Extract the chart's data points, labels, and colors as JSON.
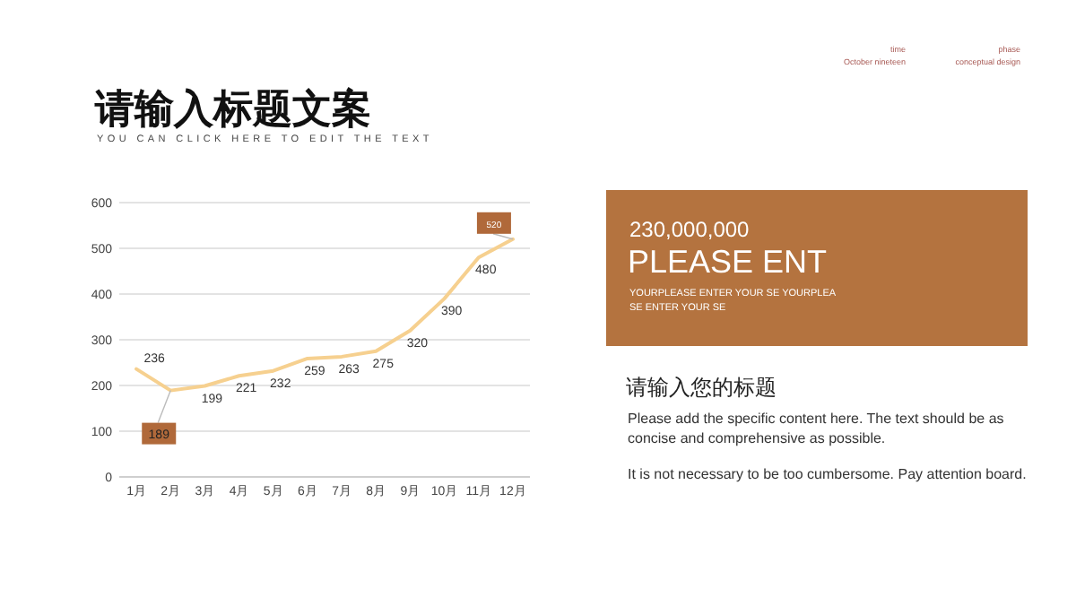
{
  "chart_data": [
    {
      "type": "line",
      "title": "请输入标题文案",
      "subtitle": "YOU CAN CLICK HERE TO EDIT THE TEXT",
      "categories": [
        "1月",
        "2月",
        "3月",
        "4月",
        "5月",
        "6月",
        "7月",
        "8月",
        "9月",
        "10月",
        "11月",
        "12月"
      ],
      "series": [
        {
          "color": "#f6d08f",
          "values": [
            236,
            189,
            199,
            221,
            232,
            259,
            263,
            275,
            320,
            390,
            480,
            520
          ]
        }
      ],
      "ylim": [
        0,
        600
      ],
      "yticks": [
        0,
        100,
        200,
        300,
        400,
        500,
        600
      ],
      "grid": "y",
      "data_labels": true,
      "marker": "none",
      "line_style": "solid"
    },
    {
      "type": "other",
      "annotations": [
        "time",
        "October nineteen",
        "phase",
        "conceptual design",
        "230,000,000",
        "PLEASE ENT",
        "YOURPLEASE ENTER YOUR SE YOURPLEASE ENTER YOUR SE",
        "请输入您的标题",
        "Please add the specific content here. The text should be as concise and comprehensive as possible.",
        "It is not necessary to be too cumbersome. Pay attention board."
      ]
    }
  ]
}
